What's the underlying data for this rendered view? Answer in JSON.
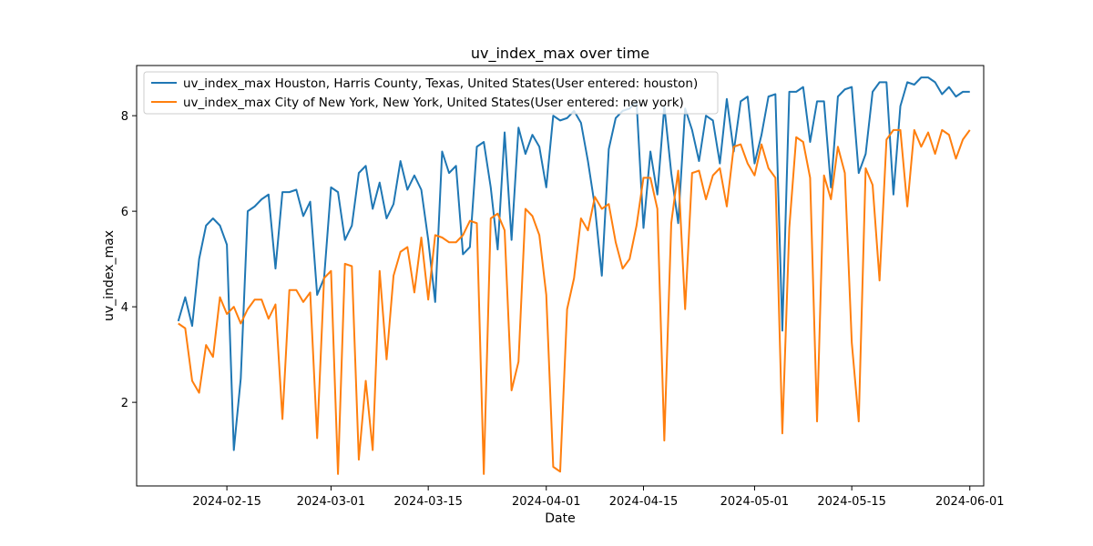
{
  "chart_data": {
    "type": "line",
    "title": "uv_index_max over time",
    "xlabel": "Date",
    "ylabel": "uv_index_max",
    "grid": false,
    "legend_position": "top-left",
    "xlim": [
      "2024-02-02",
      "2024-06-03"
    ],
    "ylim": [
      0.25,
      9.05
    ],
    "x_ticks": [
      "2024-02-15",
      "2024-03-01",
      "2024-03-15",
      "2024-04-01",
      "2024-04-15",
      "2024-05-01",
      "2024-05-15",
      "2024-06-01"
    ],
    "y_ticks": [
      2,
      4,
      6,
      8
    ],
    "x": [
      "2024-02-08",
      "2024-02-09",
      "2024-02-10",
      "2024-02-11",
      "2024-02-12",
      "2024-02-13",
      "2024-02-14",
      "2024-02-15",
      "2024-02-16",
      "2024-02-17",
      "2024-02-18",
      "2024-02-19",
      "2024-02-20",
      "2024-02-21",
      "2024-02-22",
      "2024-02-23",
      "2024-02-24",
      "2024-02-25",
      "2024-02-26",
      "2024-02-27",
      "2024-02-28",
      "2024-02-29",
      "2024-03-01",
      "2024-03-02",
      "2024-03-03",
      "2024-03-04",
      "2024-03-05",
      "2024-03-06",
      "2024-03-07",
      "2024-03-08",
      "2024-03-09",
      "2024-03-10",
      "2024-03-11",
      "2024-03-12",
      "2024-03-13",
      "2024-03-14",
      "2024-03-15",
      "2024-03-16",
      "2024-03-17",
      "2024-03-18",
      "2024-03-19",
      "2024-03-20",
      "2024-03-21",
      "2024-03-22",
      "2024-03-23",
      "2024-03-24",
      "2024-03-25",
      "2024-03-26",
      "2024-03-27",
      "2024-03-28",
      "2024-03-29",
      "2024-03-30",
      "2024-03-31",
      "2024-04-01",
      "2024-04-02",
      "2024-04-03",
      "2024-04-04",
      "2024-04-05",
      "2024-04-06",
      "2024-04-07",
      "2024-04-08",
      "2024-04-09",
      "2024-04-10",
      "2024-04-11",
      "2024-04-12",
      "2024-04-13",
      "2024-04-14",
      "2024-04-15",
      "2024-04-16",
      "2024-04-17",
      "2024-04-18",
      "2024-04-19",
      "2024-04-20",
      "2024-04-21",
      "2024-04-22",
      "2024-04-23",
      "2024-04-24",
      "2024-04-25",
      "2024-04-26",
      "2024-04-27",
      "2024-04-28",
      "2024-04-29",
      "2024-04-30",
      "2024-05-01",
      "2024-05-02",
      "2024-05-03",
      "2024-05-04",
      "2024-05-05",
      "2024-05-06",
      "2024-05-07",
      "2024-05-08",
      "2024-05-09",
      "2024-05-10",
      "2024-05-11",
      "2024-05-12",
      "2024-05-13",
      "2024-05-14",
      "2024-05-15",
      "2024-05-16",
      "2024-05-17",
      "2024-05-18",
      "2024-05-19",
      "2024-05-20",
      "2024-05-21",
      "2024-05-22",
      "2024-05-23",
      "2024-05-24",
      "2024-05-25",
      "2024-05-26",
      "2024-05-27",
      "2024-05-28",
      "2024-05-29",
      "2024-05-30",
      "2024-05-31",
      "2024-06-01"
    ],
    "series": [
      {
        "name": "uv_index_max Houston, Harris County, Texas, United States(User entered: houston)",
        "color": "#1f77b4",
        "values": [
          3.7,
          4.2,
          3.6,
          5.0,
          5.7,
          5.85,
          5.7,
          5.3,
          1.0,
          2.5,
          6.0,
          6.1,
          6.25,
          6.35,
          4.8,
          6.4,
          6.4,
          6.45,
          5.9,
          6.2,
          4.25,
          4.6,
          6.5,
          6.4,
          5.4,
          5.7,
          6.8,
          6.95,
          6.05,
          6.6,
          5.85,
          6.15,
          7.05,
          6.45,
          6.75,
          6.45,
          5.4,
          4.1,
          7.25,
          6.8,
          6.95,
          5.1,
          5.25,
          7.35,
          7.45,
          6.5,
          5.2,
          7.65,
          5.4,
          7.75,
          7.2,
          7.6,
          7.35,
          6.5,
          8.0,
          7.9,
          7.95,
          8.1,
          7.85,
          7.05,
          6.1,
          4.65,
          7.3,
          7.95,
          8.1,
          8.15,
          8.3,
          5.65,
          7.25,
          6.35,
          8.2,
          6.8,
          5.75,
          8.15,
          7.7,
          7.05,
          8.0,
          7.9,
          7.0,
          8.35,
          7.25,
          8.3,
          8.4,
          7.0,
          7.6,
          8.4,
          8.45,
          3.5,
          8.5,
          8.5,
          8.6,
          7.45,
          8.3,
          8.3,
          6.5,
          8.4,
          8.55,
          8.6,
          6.8,
          7.2,
          8.5,
          8.7,
          8.7,
          6.35,
          8.2,
          8.7,
          8.65,
          8.8,
          8.8,
          8.7,
          8.45,
          8.6,
          8.4,
          8.5,
          8.5
        ]
      },
      {
        "name": "uv_index_max City of New York, New York, United States(User entered: new york)",
        "color": "#ff7f0e",
        "values": [
          3.65,
          3.55,
          2.45,
          2.2,
          3.2,
          2.95,
          4.2,
          3.85,
          4.0,
          3.65,
          3.95,
          4.15,
          4.15,
          3.75,
          4.05,
          1.65,
          4.35,
          4.35,
          4.1,
          4.3,
          1.25,
          4.6,
          4.75,
          0.5,
          4.9,
          4.85,
          0.8,
          2.45,
          1.0,
          4.75,
          2.9,
          4.65,
          5.15,
          5.25,
          4.3,
          5.45,
          4.15,
          5.5,
          5.45,
          5.35,
          5.35,
          5.5,
          5.8,
          5.75,
          0.5,
          5.85,
          5.95,
          5.6,
          2.25,
          2.85,
          6.05,
          5.9,
          5.5,
          4.25,
          0.65,
          0.55,
          3.95,
          4.6,
          5.85,
          5.6,
          6.3,
          6.05,
          6.15,
          5.35,
          4.8,
          5.0,
          5.7,
          6.7,
          6.7,
          6.05,
          1.2,
          5.75,
          6.85,
          3.95,
          6.8,
          6.85,
          6.25,
          6.75,
          6.9,
          6.1,
          7.35,
          7.4,
          7.0,
          6.75,
          7.4,
          6.9,
          6.7,
          1.35,
          5.65,
          7.55,
          7.45,
          6.7,
          1.6,
          6.75,
          6.25,
          7.35,
          6.8,
          3.25,
          1.6,
          6.9,
          6.55,
          4.55,
          7.5,
          7.7,
          7.7,
          6.1,
          7.7,
          7.35,
          7.65,
          7.2,
          7.7,
          7.6,
          7.1,
          7.5,
          7.7
        ]
      }
    ]
  }
}
